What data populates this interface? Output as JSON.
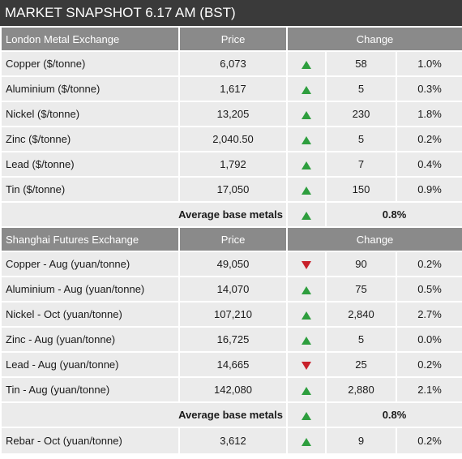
{
  "title": "MARKET SNAPSHOT 6.17 AM (BST)",
  "colors": {
    "up": "#2e9e3e",
    "down": "#c8202a",
    "header": "#8a8a8a",
    "title_bar": "#3a3a3a",
    "row_bg": "#ebebeb"
  },
  "lme": {
    "header": {
      "name": "London Metal Exchange",
      "price": "Price",
      "change": "Change"
    },
    "rows": [
      {
        "name": "Copper ($/tonne)",
        "price": "6,073",
        "direction": "up",
        "change": "58",
        "pct": "1.0%"
      },
      {
        "name": "Aluminium ($/tonne)",
        "price": "1,617",
        "direction": "up",
        "change": "5",
        "pct": "0.3%"
      },
      {
        "name": "Nickel ($/tonne)",
        "price": "13,205",
        "direction": "up",
        "change": "230",
        "pct": "1.8%"
      },
      {
        "name": "Zinc ($/tonne)",
        "price": "2,040.50",
        "direction": "up",
        "change": "5",
        "pct": "0.2%"
      },
      {
        "name": "Lead ($/tonne)",
        "price": "1,792",
        "direction": "up",
        "change": "7",
        "pct": "0.4%"
      },
      {
        "name": "Tin ($/tonne)",
        "price": "17,050",
        "direction": "up",
        "change": "150",
        "pct": "0.9%"
      }
    ],
    "average": {
      "label": "Average base metals",
      "direction": "up",
      "pct": "0.8%"
    }
  },
  "shfe": {
    "header": {
      "name": "Shanghai Futures Exchange",
      "price": "Price",
      "change": "Change"
    },
    "rows": [
      {
        "name": "Copper - Aug (yuan/tonne)",
        "price": "49,050",
        "direction": "down",
        "change": "90",
        "pct": "0.2%"
      },
      {
        "name": "Aluminium - Aug (yuan/tonne)",
        "price": "14,070",
        "direction": "up",
        "change": "75",
        "pct": "0.5%"
      },
      {
        "name": "Nickel - Oct (yuan/tonne)",
        "price": "107,210",
        "direction": "up",
        "change": "2,840",
        "pct": "2.7%"
      },
      {
        "name": "Zinc - Aug (yuan/tonne)",
        "price": "16,725",
        "direction": "up",
        "change": "5",
        "pct": "0.0%"
      },
      {
        "name": "Lead - Aug (yuan/tonne)",
        "price": "14,665",
        "direction": "down",
        "change": "25",
        "pct": "0.2%"
      },
      {
        "name": "Tin - Aug (yuan/tonne)",
        "price": "142,080",
        "direction": "up",
        "change": "2,880",
        "pct": "2.1%"
      }
    ],
    "average": {
      "label": "Average base metals",
      "direction": "up",
      "pct": "0.8%"
    },
    "extra": {
      "name": "Rebar - Oct (yuan/tonne)",
      "price": "3,612",
      "direction": "up",
      "change": "9",
      "pct": "0.2%"
    }
  }
}
